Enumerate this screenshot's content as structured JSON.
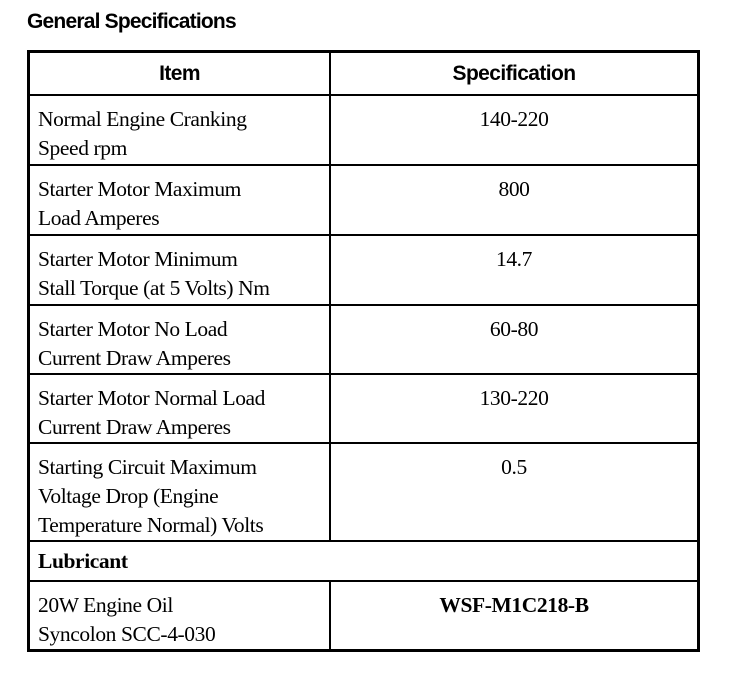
{
  "title": "General Specifications",
  "headers": {
    "item": "Item",
    "specification": "Specification"
  },
  "rows": [
    {
      "item": [
        "Normal Engine Cranking",
        "Speed rpm"
      ],
      "spec": "140-220"
    },
    {
      "item": [
        "Starter Motor Maximum",
        "Load Amperes"
      ],
      "spec": "800"
    },
    {
      "item": [
        "Starter Motor Minimum",
        "Stall Torque (at 5 Volts) Nm"
      ],
      "spec": "14.7"
    },
    {
      "item": [
        "Starter Motor No Load",
        "Current Draw Amperes"
      ],
      "spec": "60-80"
    },
    {
      "item": [
        "Starter Motor Normal Load",
        "Current Draw Amperes"
      ],
      "spec": "130-220"
    },
    {
      "item": [
        "Starting Circuit Maximum",
        "Voltage Drop (Engine",
        "Temperature Normal) Volts"
      ],
      "spec": "0.5"
    }
  ],
  "section": "Lubricant",
  "lubricant": {
    "item": [
      "20W Engine Oil",
      "Syncolon SCC-4-030"
    ],
    "spec": "WSF-M1C218-B"
  }
}
